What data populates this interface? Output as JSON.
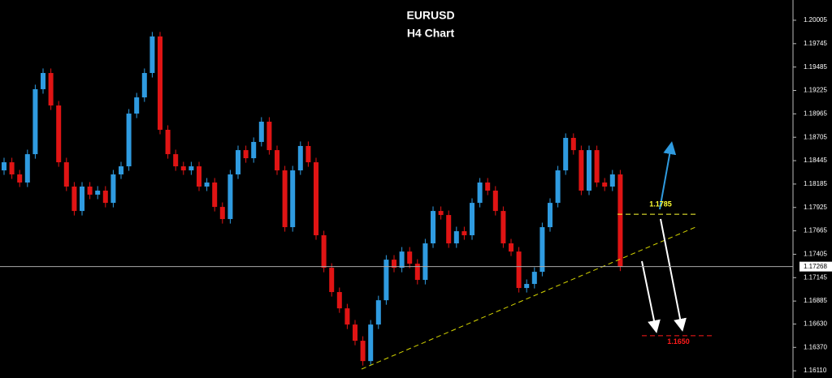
{
  "chart_data": {
    "type": "candlestick",
    "title": "EURUSD",
    "subtitle": "H4 Chart",
    "up_color": "#2f9be0",
    "down_color": "#e01414",
    "ylim": [
      1.1603,
      1.2023
    ],
    "yticks": [
      1.20005,
      1.19745,
      1.19485,
      1.19225,
      1.18965,
      1.18705,
      1.18445,
      1.18185,
      1.17925,
      1.17665,
      1.17405,
      1.17145,
      1.16885,
      {
        "value": 1.1663,
        "label": "1.16630"
      },
      {
        "value": 1.1637,
        "label": "1.16370"
      },
      {
        "value": 1.1611,
        "label": "1.16110"
      }
    ],
    "current_price": 1.17268,
    "annotations": [
      {
        "value": 1.1785,
        "label": "1.1785",
        "color": "#ffff33"
      },
      {
        "value": 1.165,
        "label": "1.1650",
        "color": "#ff1a1a"
      }
    ],
    "series": {
      "open": [
        1.18337,
        1.18427,
        1.18292,
        1.18202,
        1.18517,
        1.19239,
        1.19419,
        1.19058,
        1.18427,
        1.18157,
        1.17886,
        1.18157,
        1.18067,
        1.18112,
        1.17976,
        1.18292,
        1.18382,
        1.18968,
        1.19148,
        1.19419,
        1.19825,
        1.18788,
        1.18517,
        1.18382,
        1.18337,
        1.18382,
        1.18157,
        1.18202,
        1.17931,
        1.17796,
        1.18292,
        1.18562,
        1.18472,
        1.18653,
        1.18878,
        1.18562,
        1.18337,
        1.17706,
        1.18337,
        1.18608,
        1.18427,
        1.17616,
        1.17255,
        1.16985,
        1.16804,
        1.16624,
        1.16444,
        1.16218,
        1.16624,
        1.16894,
        1.17345,
        1.17255,
        1.17435,
        1.173,
        1.1712,
        1.17526,
        1.17886,
        1.17841,
        1.17526,
        1.17661,
        1.17616,
        1.17976,
        1.18202,
        1.18112,
        1.17886,
        1.17526,
        1.17435,
        1.1703,
        1.17075,
        1.1721,
        1.17706,
        1.17976,
        1.18337,
        1.18698,
        1.18562,
        1.18112,
        1.18562,
        1.18202,
        1.18157,
        1.18292
      ],
      "high": [
        1.18477,
        1.18477,
        1.18342,
        1.18567,
        1.19289,
        1.19469,
        1.19469,
        1.19108,
        1.18477,
        1.18207,
        1.18207,
        1.18207,
        1.18162,
        1.18162,
        1.18342,
        1.18432,
        1.19018,
        1.19198,
        1.19469,
        1.19875,
        1.19875,
        1.18838,
        1.18567,
        1.18432,
        1.18432,
        1.18432,
        1.18252,
        1.18252,
        1.17981,
        1.18342,
        1.18612,
        1.18612,
        1.18703,
        1.18928,
        1.18928,
        1.18612,
        1.18387,
        1.18387,
        1.18658,
        1.18658,
        1.18477,
        1.17666,
        1.17305,
        1.17035,
        1.16854,
        1.16674,
        1.16494,
        1.16674,
        1.16944,
        1.17395,
        1.17395,
        1.17485,
        1.17485,
        1.1735,
        1.17576,
        1.17936,
        1.17936,
        1.17891,
        1.17711,
        1.17711,
        1.18026,
        1.18252,
        1.18252,
        1.18162,
        1.17936,
        1.17576,
        1.17485,
        1.17125,
        1.1726,
        1.17756,
        1.18026,
        1.18387,
        1.18748,
        1.18748,
        1.18612,
        1.18612,
        1.18612,
        1.18252,
        1.18342,
        1.18342
      ],
      "low": [
        1.18287,
        1.18242,
        1.18152,
        1.18152,
        1.18467,
        1.19189,
        1.19008,
        1.18377,
        1.18107,
        1.17836,
        1.17836,
        1.18017,
        1.18017,
        1.17926,
        1.17926,
        1.18242,
        1.18332,
        1.18918,
        1.19098,
        1.19369,
        1.18738,
        1.18467,
        1.18332,
        1.18287,
        1.18287,
        1.18107,
        1.18107,
        1.17881,
        1.17746,
        1.17746,
        1.18242,
        1.18422,
        1.18422,
        1.18603,
        1.18512,
        1.18287,
        1.17656,
        1.17656,
        1.18287,
        1.18377,
        1.17566,
        1.17205,
        1.16935,
        1.16754,
        1.16574,
        1.16394,
        1.16168,
        1.16168,
        1.16574,
        1.16844,
        1.17205,
        1.17205,
        1.1725,
        1.1707,
        1.1707,
        1.17476,
        1.17791,
        1.17476,
        1.17476,
        1.17566,
        1.17566,
        1.17926,
        1.18062,
        1.17836,
        1.17476,
        1.17385,
        1.1698,
        1.1698,
        1.17025,
        1.1716,
        1.17656,
        1.17926,
        1.18287,
        1.18512,
        1.18062,
        1.18062,
        1.18152,
        1.18107,
        1.18107,
        1.17218
      ],
      "close": [
        1.18427,
        1.18292,
        1.18202,
        1.18517,
        1.19239,
        1.19419,
        1.19058,
        1.18427,
        1.18157,
        1.17886,
        1.18157,
        1.18067,
        1.18112,
        1.17976,
        1.18292,
        1.18382,
        1.18968,
        1.19148,
        1.19419,
        1.19825,
        1.18788,
        1.18517,
        1.18382,
        1.18337,
        1.18382,
        1.18157,
        1.18202,
        1.17931,
        1.17796,
        1.18292,
        1.18562,
        1.18472,
        1.18653,
        1.18878,
        1.18562,
        1.18337,
        1.17706,
        1.18337,
        1.18608,
        1.18427,
        1.17616,
        1.17255,
        1.16985,
        1.16804,
        1.16624,
        1.16444,
        1.16218,
        1.16624,
        1.16894,
        1.17345,
        1.17255,
        1.17435,
        1.173,
        1.1712,
        1.17526,
        1.17886,
        1.17841,
        1.17526,
        1.17661,
        1.17616,
        1.17976,
        1.18202,
        1.18112,
        1.17886,
        1.17526,
        1.17435,
        1.1703,
        1.17075,
        1.1721,
        1.17706,
        1.17976,
        1.18337,
        1.18698,
        1.18562,
        1.18112,
        1.18562,
        1.18202,
        1.18157,
        1.18292,
        1.17268
      ]
    }
  }
}
